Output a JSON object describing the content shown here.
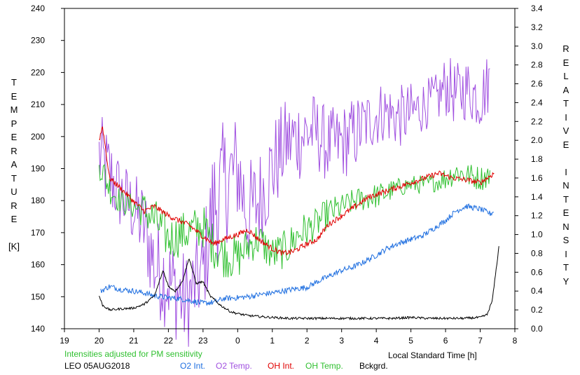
{
  "chart_data": {
    "type": "line",
    "title": "",
    "xlabel": "Local Standard Time [h]",
    "ylabel_left": "T\nE\nM\nP\nE\nR\nA\nT\nU\nR\nE\n\n[K]",
    "ylabel_right": "R\nE\nL\nA\nT\nI\nV\nE\n\nI\nN\nT\nE\nN\nS\nI\nT\nY",
    "xlim": [
      19,
      32
    ],
    "x_tick_values": [
      19,
      20,
      21,
      22,
      23,
      24,
      25,
      26,
      27,
      28,
      29,
      30,
      31,
      32
    ],
    "x_tick_labels": [
      "19",
      "20",
      "21",
      "22",
      "23",
      "0",
      "1",
      "2",
      "3",
      "4",
      "5",
      "6",
      "7",
      "8"
    ],
    "ylim_left": [
      140,
      240
    ],
    "y_left_ticks": [
      "140",
      "150",
      "160",
      "170",
      "180",
      "190",
      "200",
      "210",
      "220",
      "230",
      "240"
    ],
    "ylim_right": [
      0,
      3.4
    ],
    "y_right_ticks": [
      "0.0",
      "0.2",
      "0.4",
      "0.6",
      "0.8",
      "1.0",
      "1.2",
      "1.4",
      "1.6",
      "1.8",
      "2.0",
      "2.2",
      "2.4",
      "2.6",
      "2.8",
      "3.0",
      "3.2",
      "3.4"
    ],
    "grid": false,
    "note": "Intensities adjusted for PM sensitivity",
    "site_date": "LEO 05AUG2018",
    "legend": [
      {
        "label": "O2 Int.",
        "color": "#1f6fe0"
      },
      {
        "label": "O2 Temp.",
        "color": "#a050e0"
      },
      {
        "label": "OH Int.",
        "color": "#e00000"
      },
      {
        "label": "OH Temp.",
        "color": "#30c030"
      },
      {
        "label": "Bckgrd.",
        "color": "#000000"
      }
    ],
    "series": [
      {
        "name": "O2 Temp.",
        "axis": "left",
        "color": "#a050e0",
        "style": "spiky",
        "x": [
          20.0,
          20.3,
          20.6,
          21.0,
          21.3,
          21.6,
          22.0,
          22.5,
          23.0,
          23.3,
          23.6,
          24.0,
          24.3,
          24.6,
          25.0,
          25.4,
          25.8,
          26.2,
          26.6,
          27.0,
          27.4,
          27.8,
          28.2,
          28.6,
          29.0,
          29.4,
          29.8,
          30.0,
          30.3,
          30.6,
          31.0,
          31.3
        ],
        "y": [
          194,
          188,
          182,
          177,
          172,
          160,
          155,
          148,
          158,
          178,
          185,
          190,
          175,
          180,
          190,
          198,
          200,
          202,
          197,
          198,
          201,
          205,
          208,
          206,
          207,
          210,
          212,
          216,
          213,
          215,
          212,
          218
        ],
        "amp": [
          14,
          14,
          12,
          12,
          14,
          16,
          16,
          16,
          14,
          22,
          20,
          18,
          18,
          16,
          16,
          14,
          14,
          12,
          12,
          12,
          12,
          10,
          10,
          10,
          10,
          8,
          8,
          10,
          10,
          10,
          10,
          10
        ]
      },
      {
        "name": "OH Temp.",
        "axis": "left",
        "color": "#30c030",
        "style": "spiky",
        "x": [
          20.0,
          20.3,
          20.6,
          21.0,
          21.3,
          21.6,
          22.0,
          22.5,
          23.0,
          23.3,
          23.6,
          24.0,
          24.3,
          24.6,
          25.0,
          25.4,
          25.8,
          26.2,
          26.6,
          27.0,
          27.4,
          27.8,
          28.2,
          28.6,
          29.0,
          29.4,
          29.8,
          30.0,
          30.3,
          30.6,
          31.0,
          31.3
        ],
        "y": [
          192,
          184,
          180,
          178,
          177,
          174,
          168,
          170,
          172,
          166,
          163,
          162,
          166,
          168,
          163,
          165,
          170,
          172,
          176,
          178,
          180,
          181,
          182,
          184,
          185,
          185,
          186,
          187,
          189,
          188,
          187,
          188
        ],
        "amp": [
          5,
          5,
          4,
          4,
          6,
          7,
          7,
          7,
          7,
          7,
          7,
          7,
          6,
          6,
          6,
          6,
          6,
          5,
          5,
          4,
          4,
          4,
          4,
          3,
          3,
          3,
          3,
          4,
          4,
          4,
          4,
          4
        ]
      },
      {
        "name": "OH Int.",
        "axis": "right",
        "color": "#e00000",
        "style": "line",
        "x": [
          20.0,
          20.1,
          20.3,
          20.6,
          21.0,
          21.3,
          21.6,
          22.0,
          22.3,
          22.6,
          23.0,
          23.3,
          23.6,
          24.0,
          24.3,
          24.6,
          25.0,
          25.3,
          25.6,
          26.0,
          26.3,
          26.6,
          27.0,
          27.4,
          27.8,
          28.2,
          28.6,
          29.0,
          29.4,
          29.8,
          30.2,
          30.6,
          31.0,
          31.2,
          31.4
        ],
        "y": [
          2.0,
          2.15,
          1.6,
          1.5,
          1.35,
          1.25,
          1.3,
          1.2,
          1.15,
          1.1,
          0.98,
          0.9,
          0.95,
          1.0,
          1.05,
          0.95,
          0.85,
          0.8,
          0.82,
          0.9,
          0.95,
          1.1,
          1.2,
          1.3,
          1.4,
          1.45,
          1.5,
          1.55,
          1.6,
          1.65,
          1.6,
          1.58,
          1.55,
          1.6,
          1.65
        ]
      },
      {
        "name": "O2 Int.",
        "axis": "right",
        "color": "#1f6fe0",
        "style": "line",
        "x": [
          20.05,
          20.3,
          20.6,
          21.0,
          21.3,
          21.6,
          22.0,
          22.3,
          22.6,
          23.0,
          23.3,
          23.6,
          24.0,
          24.3,
          24.6,
          25.0,
          25.3,
          25.6,
          26.0,
          26.3,
          26.6,
          27.0,
          27.3,
          27.6,
          28.0,
          28.3,
          28.6,
          29.0,
          29.3,
          29.6,
          30.0,
          30.3,
          30.6,
          31.0,
          31.3,
          31.4
        ],
        "y": [
          0.4,
          0.45,
          0.42,
          0.4,
          0.38,
          0.35,
          0.33,
          0.32,
          0.3,
          0.27,
          0.28,
          0.32,
          0.33,
          0.34,
          0.36,
          0.38,
          0.4,
          0.42,
          0.44,
          0.5,
          0.55,
          0.62,
          0.65,
          0.7,
          0.78,
          0.85,
          0.9,
          0.95,
          0.98,
          1.05,
          1.15,
          1.25,
          1.3,
          1.27,
          1.22,
          1.25
        ]
      },
      {
        "name": "Bckgrd.",
        "axis": "right",
        "color": "#000000",
        "style": "line",
        "x": [
          20.0,
          20.1,
          20.3,
          20.6,
          21.0,
          21.3,
          21.6,
          21.85,
          22.0,
          22.2,
          22.4,
          22.6,
          22.8,
          23.0,
          23.2,
          23.5,
          23.8,
          24.0,
          24.3,
          24.6,
          25.0,
          25.5,
          26.0,
          26.5,
          27.0,
          27.5,
          28.0,
          28.5,
          29.0,
          29.5,
          30.0,
          30.5,
          31.0,
          31.2,
          31.35,
          31.45,
          31.55
        ],
        "y": [
          0.35,
          0.25,
          0.2,
          0.21,
          0.22,
          0.26,
          0.35,
          0.62,
          0.45,
          0.4,
          0.5,
          0.75,
          0.48,
          0.5,
          0.35,
          0.25,
          0.18,
          0.16,
          0.14,
          0.13,
          0.12,
          0.11,
          0.11,
          0.11,
          0.11,
          0.11,
          0.11,
          0.11,
          0.12,
          0.11,
          0.11,
          0.11,
          0.12,
          0.15,
          0.3,
          0.6,
          0.9
        ]
      }
    ]
  }
}
